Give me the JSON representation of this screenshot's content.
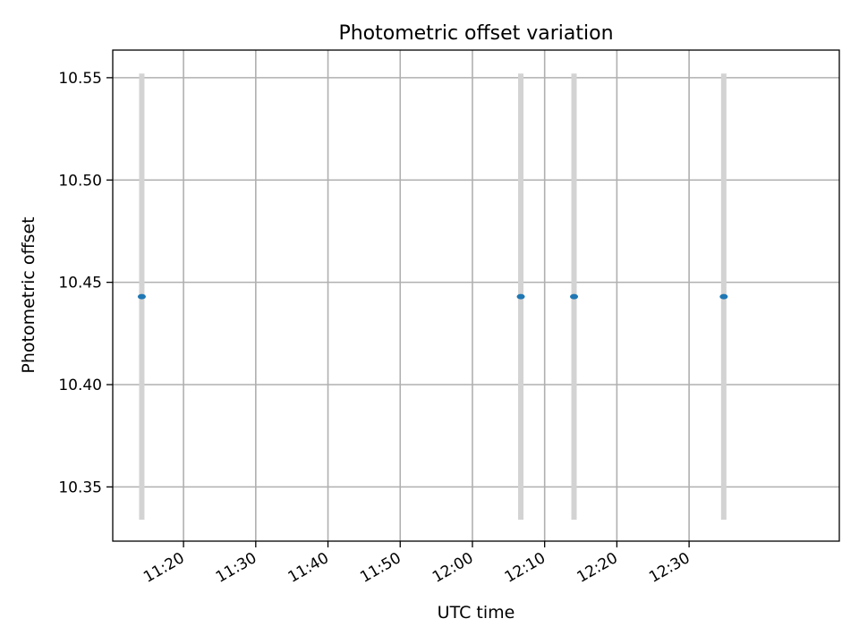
{
  "chart_data": {
    "type": "scatter",
    "title": "Photometric offset variation",
    "xlabel": "UTC time",
    "ylabel": "Photometric offset",
    "x_tick_labels": [
      "11:20",
      "11:30",
      "11:40",
      "11:50",
      "12:00",
      "12:10",
      "12:20",
      "12:30"
    ],
    "x_ticks_min": [
      680,
      690,
      700,
      710,
      720,
      730,
      740,
      750
    ],
    "y_ticks": [
      10.35,
      10.4,
      10.45,
      10.5,
      10.55
    ],
    "y_tick_labels": [
      "10.35",
      "10.40",
      "10.45",
      "10.50",
      "10.55"
    ],
    "xlim_min": [
      670.2,
      770.8
    ],
    "ylim": [
      10.3235,
      10.5635
    ],
    "grid": true,
    "points": [
      {
        "time": "11:14:13",
        "t_min": 674.22,
        "y": 10.443,
        "yerr": 0.109
      },
      {
        "time": "12:06:42",
        "t_min": 726.7,
        "y": 10.443,
        "yerr": 0.109
      },
      {
        "time": "12:14:04",
        "t_min": 734.07,
        "y": 10.443,
        "yerr": 0.109
      },
      {
        "time": "12:34:48",
        "t_min": 754.8,
        "y": 10.443,
        "yerr": 0.109
      }
    ],
    "colors": {
      "marker": "#1f77b4",
      "errorbar": "#d3d3d3",
      "grid": "#b0b0b0"
    }
  }
}
